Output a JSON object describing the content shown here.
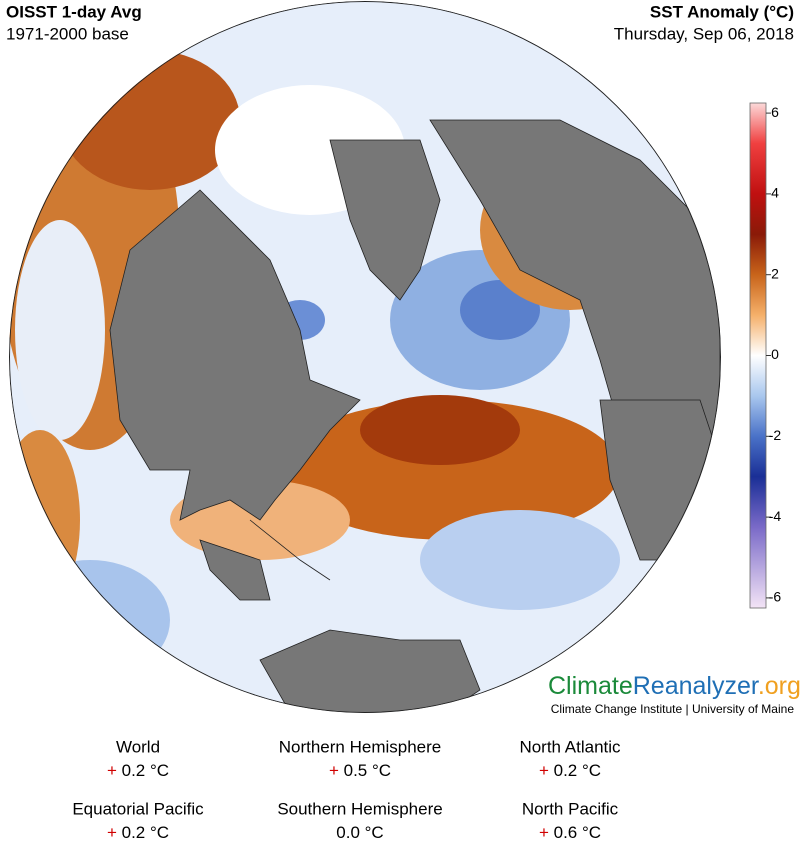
{
  "header": {
    "title": "OISST 1-day Avg",
    "subtitle": "1971-2000 base",
    "variable": "SST Anomaly (°C)",
    "date": "Thursday, Sep 06, 2018"
  },
  "colorbar": {
    "lim": [
      -6.25,
      6.25
    ],
    "ticks": [
      6,
      4,
      2,
      0,
      -2,
      -4,
      -6
    ]
  },
  "logo": {
    "parts": [
      "Climate",
      "Reanalyzer",
      ".org"
    ],
    "subtitle": "Climate Change Institute | University of Maine"
  },
  "stats": [
    {
      "region": "World",
      "sign": "+",
      "value": "0.2 °C"
    },
    {
      "region": "Northern Hemisphere",
      "sign": "+",
      "value": "0.5 °C"
    },
    {
      "region": "North Atlantic",
      "sign": "+",
      "value": "0.2 °C"
    },
    {
      "region": "Equatorial Pacific",
      "sign": "+",
      "value": "0.2 °C"
    },
    {
      "region": "Southern Hemisphere",
      "value": "0.0 °C"
    },
    {
      "region": "North Pacific",
      "sign": "+",
      "value": "0.6 °C"
    }
  ]
}
